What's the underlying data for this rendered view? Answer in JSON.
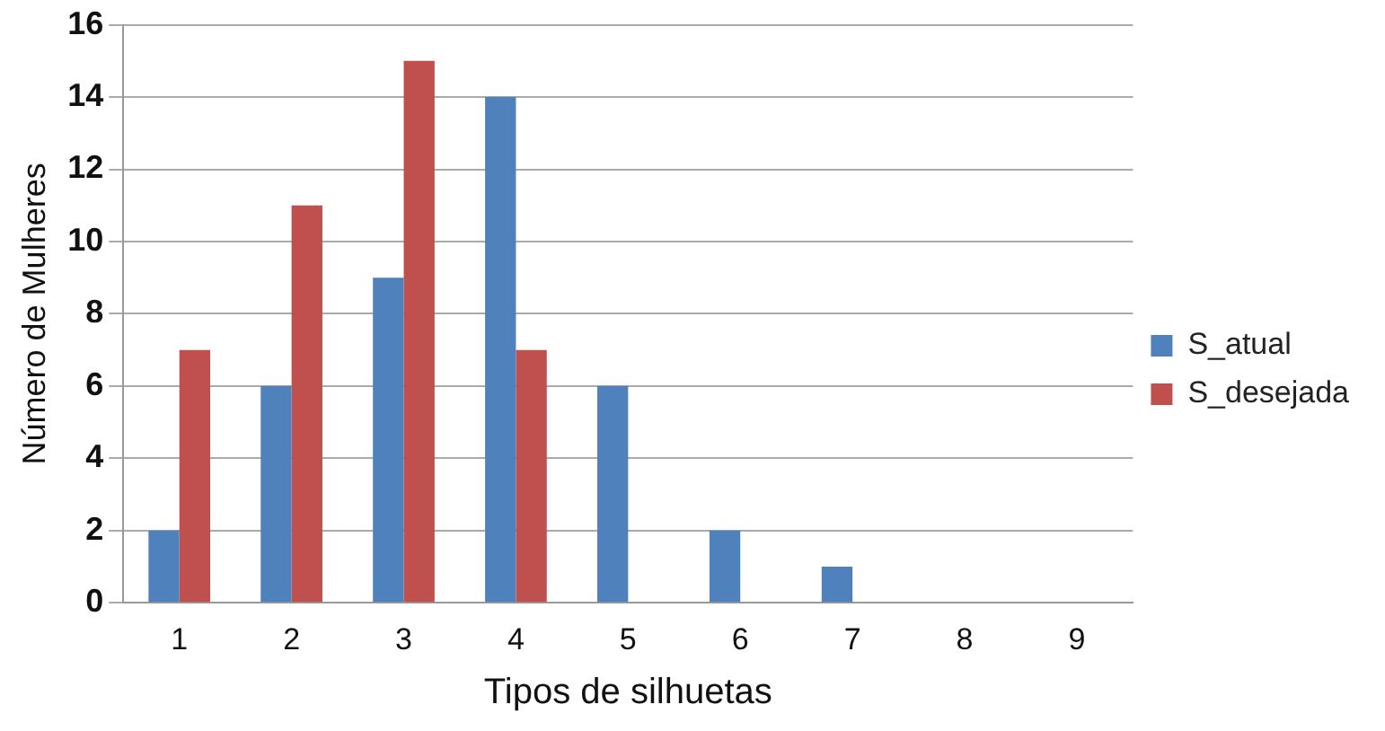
{
  "chart_data": {
    "type": "bar",
    "xlabel": "Tipos de silhuetas",
    "ylabel": "Número de Mulheres",
    "categories": [
      "1",
      "2",
      "3",
      "4",
      "5",
      "6",
      "7",
      "8",
      "9"
    ],
    "series": [
      {
        "name": "S_atual",
        "color": "#4f81bd",
        "values": [
          2,
          6,
          9,
          14,
          6,
          2,
          1,
          0,
          0
        ]
      },
      {
        "name": "S_desejada",
        "color": "#c0504d",
        "values": [
          7,
          11,
          15,
          7,
          0,
          0,
          0,
          0,
          0
        ]
      }
    ],
    "ylim": [
      0,
      16
    ],
    "yticks": [
      0,
      2,
      4,
      6,
      8,
      10,
      12,
      14,
      16
    ],
    "grid": "y",
    "legend": "right"
  }
}
